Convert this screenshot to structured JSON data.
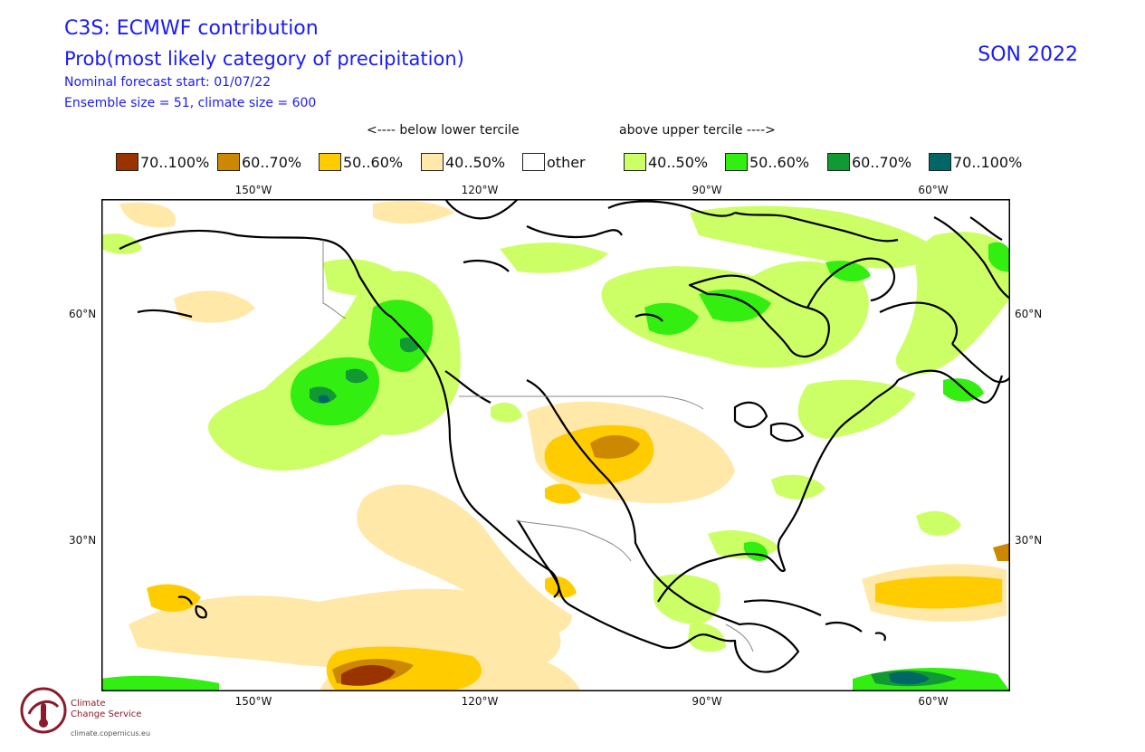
{
  "header": {
    "title": "C3S: ECMWF contribution",
    "subtitle": "Prob(most likely category of precipitation)",
    "forecast_start": "Nominal forecast start: 01/07/22",
    "ensemble": "Ensemble size = 51, climate size = 600",
    "season": "SON 2022"
  },
  "legend": {
    "below_label": "<---- below lower tercile",
    "above_label": "above upper tercile ---->",
    "items": [
      {
        "label": "70..100%",
        "color": "#993300"
      },
      {
        "label": "60..70%",
        "color": "#cc8800"
      },
      {
        "label": "50..60%",
        "color": "#ffcc00"
      },
      {
        "label": "40..50%",
        "color": "#ffe8a8"
      },
      {
        "label": "other",
        "color": "#ffffff"
      },
      {
        "label": "40..50%",
        "color": "#ccff66"
      },
      {
        "label": "50..60%",
        "color": "#33ee11"
      },
      {
        "label": "60..70%",
        "color": "#119933"
      },
      {
        "label": "70..100%",
        "color": "#006666"
      }
    ]
  },
  "axes": {
    "lon_labels": [
      "150°W",
      "120°W",
      "90°W",
      "60°W"
    ],
    "lat_labels": [
      "60°N",
      "30°N"
    ]
  },
  "logo": {
    "name_line1": "Climate",
    "name_line2": "Change Service",
    "url": "climate.copernicus.eu"
  }
}
